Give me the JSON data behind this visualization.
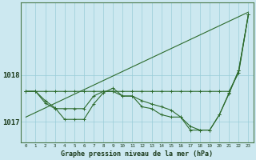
{
  "title": "Graphe pression niveau de la mer (hPa)",
  "bg_color": "#cce8f0",
  "grid_color": "#99ccd8",
  "line_color": "#2d6b2d",
  "xlim": [
    -0.5,
    23.5
  ],
  "ylim": [
    1016.55,
    1019.55
  ],
  "yticks": [
    1017,
    1018
  ],
  "xticks": [
    0,
    1,
    2,
    3,
    4,
    5,
    6,
    7,
    8,
    9,
    10,
    11,
    12,
    13,
    14,
    15,
    16,
    17,
    18,
    19,
    20,
    21,
    22,
    23
  ],
  "line1_x": [
    0,
    1,
    2,
    3,
    4,
    5,
    6,
    7,
    8,
    9,
    10,
    11,
    12,
    13,
    14,
    15,
    16,
    17,
    18,
    19,
    20,
    21,
    22,
    23
  ],
  "line1_y": [
    1017.65,
    1017.65,
    1017.65,
    1017.65,
    1017.65,
    1017.65,
    1017.65,
    1017.65,
    1017.65,
    1017.65,
    1017.65,
    1017.65,
    1017.65,
    1017.65,
    1017.65,
    1017.65,
    1017.65,
    1017.65,
    1017.65,
    1017.65,
    1017.65,
    1017.65,
    1018.05,
    1019.3
  ],
  "line2_x": [
    0,
    1,
    2,
    3,
    4,
    5,
    6,
    7,
    8,
    9,
    10,
    11,
    12,
    13,
    14,
    15,
    16,
    17,
    18,
    19,
    20,
    21,
    22,
    23
  ],
  "line2_y": [
    1017.65,
    1017.65,
    1017.4,
    1017.28,
    1017.28,
    1017.28,
    1017.28,
    1017.55,
    1017.65,
    1017.65,
    1017.55,
    1017.55,
    1017.45,
    1017.38,
    1017.32,
    1017.25,
    1017.1,
    1016.9,
    1016.82,
    1016.82,
    1017.15,
    1017.6,
    1018.1,
    1019.3
  ],
  "line3_x": [
    0,
    1,
    2,
    3,
    4,
    5,
    6,
    7,
    8,
    9,
    10,
    11,
    12,
    13,
    14,
    15,
    16,
    17,
    18,
    19,
    20,
    21,
    22,
    23
  ],
  "line3_y": [
    1017.65,
    1017.65,
    1017.45,
    1017.3,
    1017.05,
    1017.05,
    1017.05,
    1017.38,
    1017.62,
    1017.72,
    1017.55,
    1017.55,
    1017.32,
    1017.28,
    1017.15,
    1017.1,
    1017.1,
    1016.82,
    1016.82,
    1016.82,
    1017.15,
    1017.62,
    1018.1,
    1019.3
  ],
  "line4_x": [
    0,
    23
  ],
  "line4_y": [
    1017.1,
    1019.35
  ]
}
